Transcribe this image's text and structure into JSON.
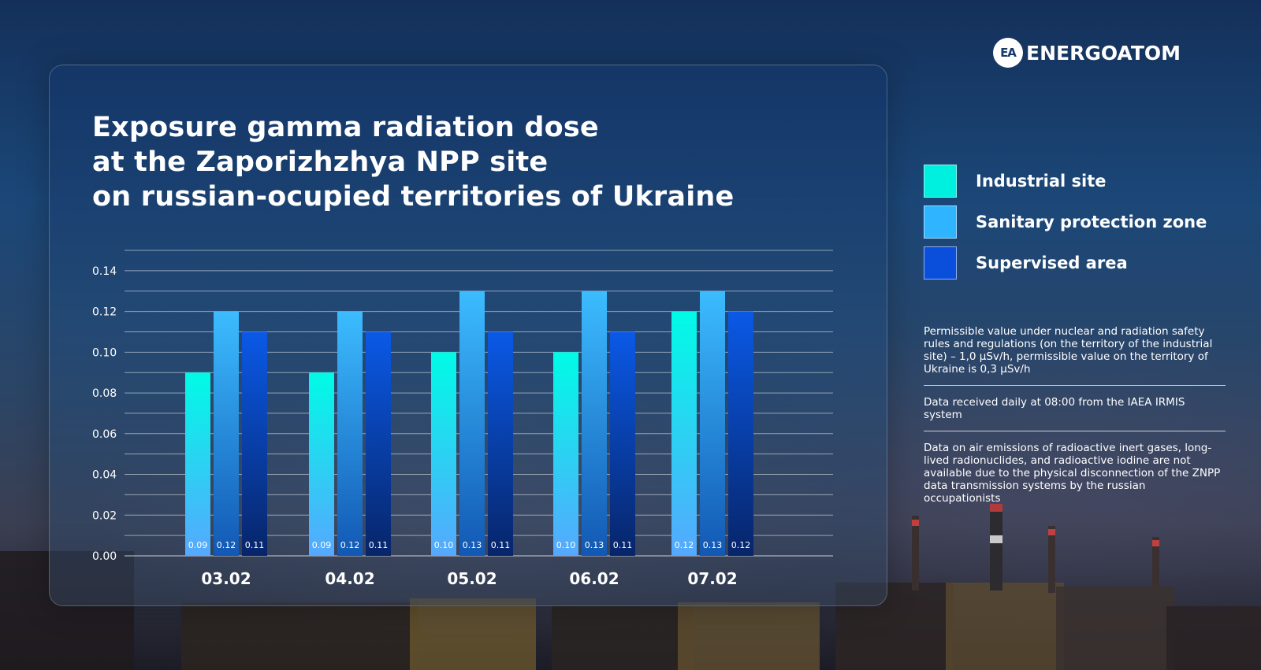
{
  "brand": {
    "logo_mark": "EA",
    "logo_text": "ENERGOATOM"
  },
  "title_lines": [
    "Exposure gamma radiation dose",
    "at the Zaporizhzhya NPP site",
    "on russian-ocupied territories of Ukraine"
  ],
  "legend": [
    {
      "label": "Industrial site",
      "color": "#00f0e0"
    },
    {
      "label": "Sanitary protection zone",
      "color": "#2fb4ff"
    },
    {
      "label": "Supervised area",
      "color": "#0a4fdc"
    }
  ],
  "notes": [
    "Permissible value under nuclear and radiation safety rules and regulations (on the territory of the industrial site) – 1,0 µSv/h, permissible value on the territory of Ukraine is 0,3 µSv/h",
    "Data received daily at 08:00 from the IAEA IRMIS system",
    "Data on air emissions of radioactive inert gases, long-lived radionuclides, and radioactive iodine are not available due to the physical disconnection of the ZNPP data transmission systems by the russian occupationists"
  ],
  "chart_data": {
    "type": "bar",
    "title": "Exposure gamma radiation dose at the Zaporizhzhya NPP site on russian-ocupied territories of Ukraine",
    "categories": [
      "03.02",
      "04.02",
      "05.02",
      "06.02",
      "07.02"
    ],
    "series": [
      {
        "name": "Industrial site",
        "values": [
          0.09,
          0.09,
          0.1,
          0.1,
          0.12
        ],
        "labels": [
          "0.09",
          "0.09",
          "0.10",
          "0.10",
          "0.12"
        ],
        "color": "#00f0e0"
      },
      {
        "name": "Sanitary protection zone",
        "values": [
          0.12,
          0.12,
          0.13,
          0.13,
          0.13
        ],
        "labels": [
          "0.12",
          "0.12",
          "0.13",
          "0.13",
          "0.13"
        ],
        "color": "#2fb4ff"
      },
      {
        "name": "Supervised area",
        "values": [
          0.11,
          0.11,
          0.11,
          0.11,
          0.12
        ],
        "labels": [
          "0.11",
          "0.11",
          "0.11",
          "0.11",
          "0.12"
        ],
        "color": "#0a4fdc"
      }
    ],
    "yticks": [
      "0.00",
      "0.02",
      "0.04",
      "0.06",
      "0.08",
      "0.10",
      "0.12",
      "0.14"
    ],
    "ylim": [
      0,
      0.15
    ],
    "grid": true,
    "legend_position": "right"
  }
}
